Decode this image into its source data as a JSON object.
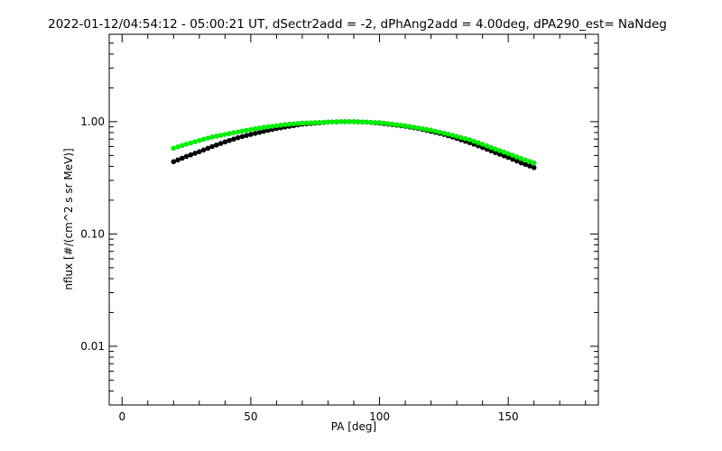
{
  "chart_data": {
    "type": "scatter",
    "title": "2022-01-12/04:54:12 - 05:00:21 UT, dSectr2add = -2, dPhAng2add = 4.00deg, dPA290_est=   NaNdeg",
    "xlabel": "PA [deg]",
    "ylabel": "nflux [#/(cm^2 s sr MeV)]",
    "xlim": [
      -5,
      185
    ],
    "ylim": [
      0.003,
      6
    ],
    "yscale": "log",
    "grid": false,
    "x_ticks": [
      0,
      50,
      100,
      150
    ],
    "x_tick_labels": [
      "0",
      "50",
      "100",
      "150"
    ],
    "y_ticks": [
      0.01,
      0.1,
      1.0
    ],
    "y_tick_labels": [
      "0.01",
      "0.10",
      "1.00"
    ],
    "series": [
      {
        "color": "#000000",
        "x": [
          20,
          25,
          30,
          35,
          40,
          45,
          50,
          55,
          60,
          65,
          70,
          75,
          80,
          85,
          90,
          95,
          100,
          105,
          110,
          115,
          120,
          125,
          130,
          135,
          140,
          145,
          150,
          155,
          160
        ],
        "y": [
          0.44,
          0.49,
          0.54,
          0.6,
          0.66,
          0.72,
          0.77,
          0.82,
          0.87,
          0.91,
          0.95,
          0.97,
          0.99,
          1.0,
          1.0,
          0.99,
          0.97,
          0.94,
          0.91,
          0.87,
          0.82,
          0.77,
          0.71,
          0.65,
          0.59,
          0.53,
          0.48,
          0.43,
          0.39
        ]
      },
      {
        "color": "#00ee00",
        "x": [
          20,
          25,
          30,
          35,
          40,
          45,
          50,
          55,
          60,
          65,
          70,
          75,
          80,
          85,
          90,
          95,
          100,
          105,
          110,
          115,
          120,
          125,
          130,
          135,
          140,
          145,
          150,
          155,
          160
        ],
        "y": [
          0.58,
          0.63,
          0.68,
          0.73,
          0.77,
          0.81,
          0.85,
          0.89,
          0.92,
          0.95,
          0.97,
          0.98,
          0.99,
          1.0,
          1.0,
          0.99,
          0.98,
          0.95,
          0.92,
          0.88,
          0.84,
          0.79,
          0.74,
          0.69,
          0.63,
          0.57,
          0.52,
          0.47,
          0.43
        ]
      }
    ]
  }
}
